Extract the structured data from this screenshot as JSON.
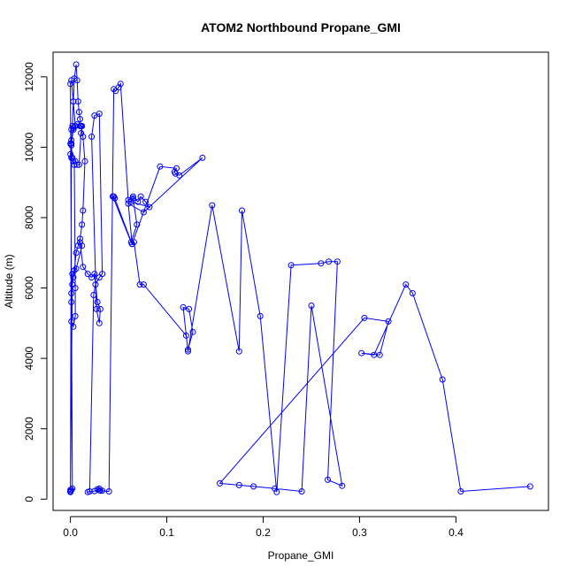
{
  "chart_data": {
    "type": "scatter",
    "title": "ATOM2 Northbound Propane_GMI",
    "xlabel": "Propane_GMI",
    "ylabel": "Altitude (m)",
    "xlim": [
      -0.018,
      0.496
    ],
    "ylim": [
      -320,
      12700
    ],
    "xticks": [
      0.0,
      0.1,
      0.2,
      0.3,
      0.4
    ],
    "xtick_labels": [
      "0.0",
      "0.1",
      "0.2",
      "0.3",
      "0.4"
    ],
    "yticks": [
      0,
      2000,
      4000,
      6000,
      8000,
      10000,
      12000
    ],
    "ytick_labels": [
      "0",
      "2000",
      "4000",
      "6000",
      "8000",
      "10000",
      "12000"
    ],
    "grid": false,
    "legend": "none",
    "color": "#0000ff",
    "marker": "open-circle",
    "connected": true,
    "series": [
      {
        "x": [
          0.0,
          0.0,
          0.001,
          0.001,
          0.002,
          0.003,
          0.004,
          0.006,
          0.008,
          0.01,
          0.012,
          0.013,
          0.015,
          0.013,
          0.011,
          0.01,
          0.009,
          0.008,
          0.007,
          0.006,
          0.004,
          0.003,
          0.002,
          0.001,
          0.0,
          0.001,
          0.002,
          0.003,
          0.004,
          0.005,
          0.005,
          0.003,
          0.001,
          0.0,
          0.001,
          0.002,
          0.0,
          0.001,
          0.003,
          0.005,
          0.003,
          0.001,
          0.0,
          0.001,
          0.005,
          0.007,
          0.009,
          0.011,
          0.012,
          0.01,
          0.007,
          0.005,
          0.003,
          0.001,
          0.0,
          0.002,
          0.006,
          0.012,
          0.01,
          0.013,
          0.018,
          0.022,
          0.025,
          0.028,
          0.031,
          0.03,
          0.027,
          0.022,
          0.025,
          0.03,
          0.033,
          0.03,
          0.026,
          0.024,
          0.02,
          0.018,
          0.025,
          0.03,
          0.033,
          0.03,
          0.028,
          0.031,
          0.04,
          0.045,
          0.047,
          0.05,
          0.052,
          0.06,
          0.065,
          0.07,
          0.073,
          0.078,
          0.082,
          0.063,
          0.065,
          0.069,
          0.063,
          0.044,
          0.045,
          0.046,
          0.064,
          0.093,
          0.11,
          0.108,
          0.109,
          0.113,
          0.137,
          0.076,
          0.06,
          0.064,
          0.066,
          0.072,
          0.076,
          0.12,
          0.122,
          0.127,
          0.123,
          0.117,
          0.122,
          0.147,
          0.175,
          0.178,
          0.197,
          0.214,
          0.229,
          0.26,
          0.268,
          0.277,
          0.267,
          0.282,
          0.25,
          0.24,
          0.212,
          0.19,
          0.175,
          0.155,
          0.305,
          0.33,
          0.321,
          0.302,
          0.315,
          0.348,
          0.355,
          0.386,
          0.405,
          0.477
        ],
        "y": [
          200,
          260,
          5600,
          5850,
          6100,
          6300,
          6500,
          7000,
          7200,
          7400,
          7800,
          8200,
          9600,
          10300,
          10600,
          10800,
          11000,
          11300,
          11900,
          12350,
          11950,
          11300,
          10600,
          10500,
          10100,
          10050,
          9700,
          9600,
          9500,
          6000,
          5200,
          4900,
          5050,
          220,
          260,
          300,
          11800,
          11900,
          11300,
          10600,
          10550,
          10200,
          9800,
          9700,
          9600,
          9500,
          9500,
          10400,
          10600,
          10600,
          10650,
          10600,
          10500,
          10100,
          220,
          6400,
          6550,
          7200,
          7300,
          6600,
          6400,
          6300,
          6400,
          5600,
          5400,
          5000,
          5400,
          10300,
          10900,
          10950,
          6400,
          6300,
          6100,
          5800,
          220,
          200,
          230,
          300,
          240,
          250,
          280,
          240,
          220,
          11650,
          11600,
          11700,
          11800,
          8500,
          8600,
          8450,
          8600,
          8450,
          8300,
          8450,
          8550,
          7800,
          7300,
          8600,
          8600,
          8550,
          7250,
          9450,
          9400,
          9300,
          9250,
          9200,
          9700,
          8150,
          8400,
          7250,
          7300,
          6100,
          6100,
          4650,
          4250,
          4750,
          5400,
          5450,
          4200,
          8350,
          4200,
          8200,
          5200,
          200,
          6650,
          6700,
          6750,
          6750,
          550,
          380,
          5500,
          220,
          300,
          360,
          400,
          450,
          5150,
          5050,
          4100,
          4150,
          4100,
          6100,
          5850,
          3400,
          220,
          360
        ]
      }
    ]
  }
}
